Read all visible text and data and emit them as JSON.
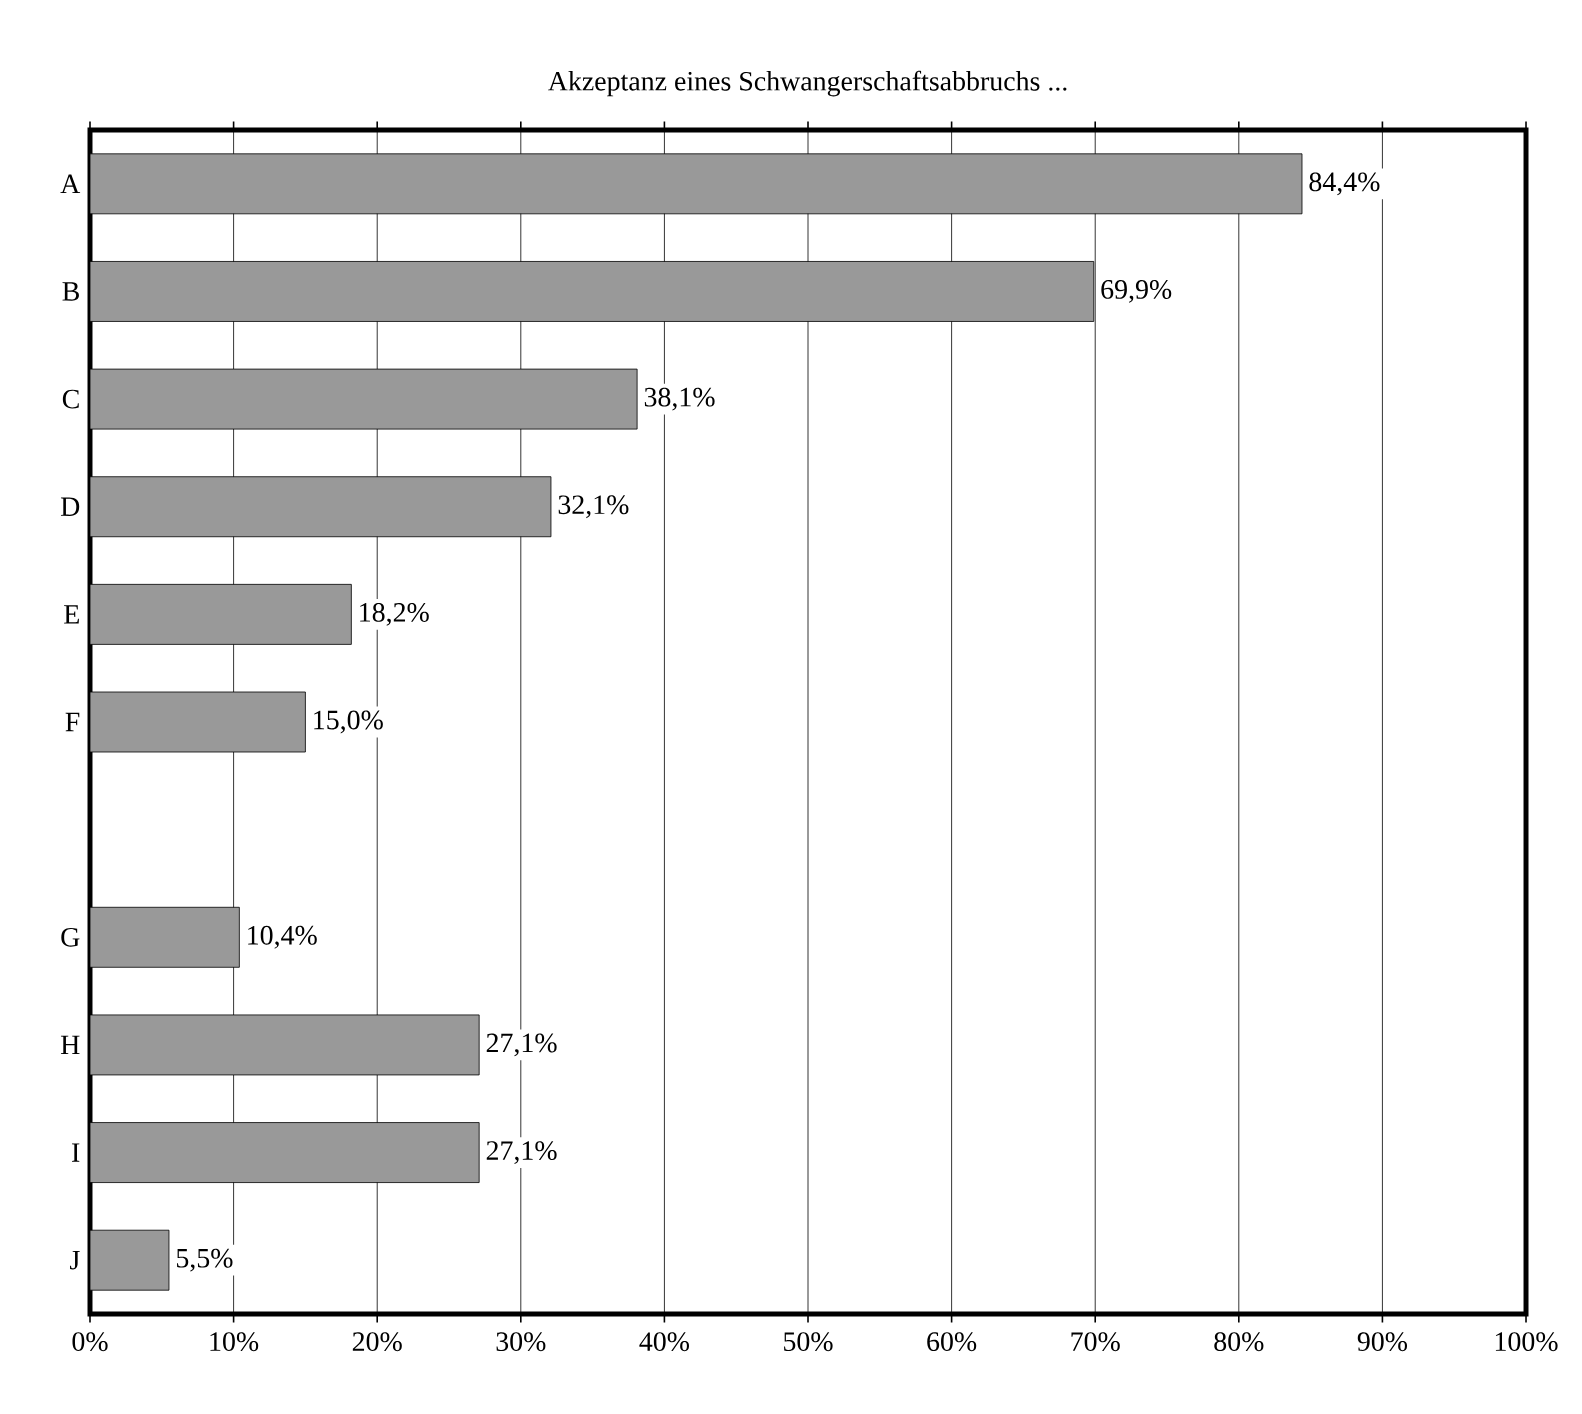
{
  "chart_data": {
    "type": "bar",
    "orientation": "horizontal",
    "title": "Akzeptanz eines Schwangerschaftsabbruchs ...",
    "categories": [
      "A",
      "B",
      "C",
      "D",
      "E",
      "F",
      null,
      "G",
      "H",
      "I",
      "J"
    ],
    "values": [
      84.4,
      69.9,
      38.1,
      32.1,
      18.2,
      15.0,
      null,
      10.4,
      27.1,
      27.1,
      5.5
    ],
    "value_labels": [
      "84,4%",
      "69,9%",
      "38,1%",
      "32,1%",
      "18,2%",
      "15,0%",
      null,
      "10,4%",
      "27,1%",
      "27,1%",
      "5,5%"
    ],
    "color": "#999999",
    "xlim": [
      0,
      100
    ],
    "xticks": [
      {
        "value": 0,
        "label": "0%"
      },
      {
        "value": 10,
        "label": "10%"
      },
      {
        "value": 20,
        "label": "20%"
      },
      {
        "value": 30,
        "label": "30%"
      },
      {
        "value": 40,
        "label": "40%"
      },
      {
        "value": 50,
        "label": "50%"
      },
      {
        "value": 60,
        "label": "60%"
      },
      {
        "value": 70,
        "label": "70%"
      },
      {
        "value": 80,
        "label": "80%"
      },
      {
        "value": 90,
        "label": "90%"
      },
      {
        "value": 100,
        "label": "100%"
      }
    ],
    "grid": "x"
  }
}
